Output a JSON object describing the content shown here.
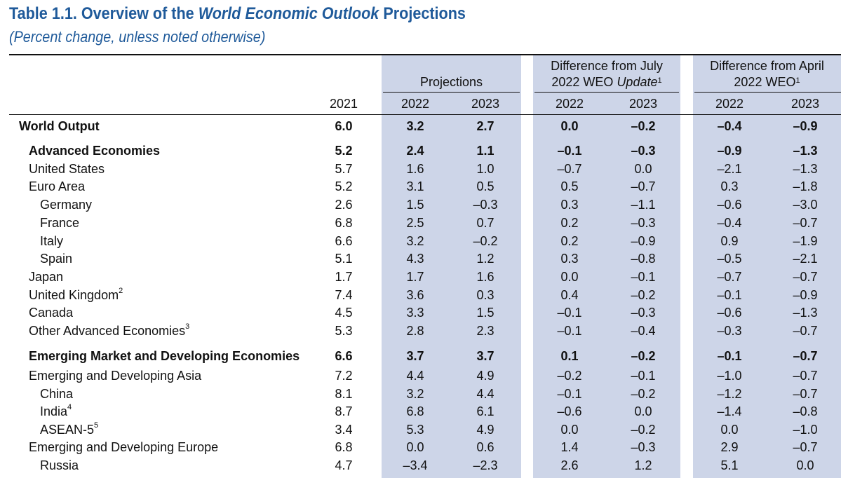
{
  "title": {
    "prefix": "Table 1.1. Overview of the ",
    "italic": "World Economic Outlook",
    "suffix": " Projections"
  },
  "subtitle": "(Percent change, unless noted otherwise)",
  "header": {
    "projections": "Projections",
    "july_line1": "Difference from July",
    "july_line2_prefix": "2022 WEO ",
    "july_line2_italic": "Update",
    "july_sup": "1",
    "april_line1": "Difference from April",
    "april_line2": "2022 WEO",
    "april_sup": "1",
    "years": [
      "2021",
      "2022",
      "2023",
      "2022",
      "2023",
      "2022",
      "2023"
    ]
  },
  "rows": [
    {
      "label": "World Output",
      "sup": "",
      "bold": true,
      "indent": 0,
      "values": [
        "6.0",
        "3.2",
        "2.7",
        "0.0",
        "–0.2",
        "–0.4",
        "–0.9"
      ]
    },
    {
      "label": "Advanced Economies",
      "sup": "",
      "bold": true,
      "indent": 1,
      "values": [
        "5.2",
        "2.4",
        "1.1",
        "–0.1",
        "–0.3",
        "–0.9",
        "–1.3"
      ]
    },
    {
      "label": "United States",
      "sup": "",
      "bold": false,
      "indent": 1,
      "values": [
        "5.7",
        "1.6",
        "1.0",
        "–0.7",
        "0.0",
        "–2.1",
        "–1.3"
      ]
    },
    {
      "label": "Euro Area",
      "sup": "",
      "bold": false,
      "indent": 1,
      "values": [
        "5.2",
        "3.1",
        "0.5",
        "0.5",
        "–0.7",
        "0.3",
        "–1.8"
      ]
    },
    {
      "label": "Germany",
      "sup": "",
      "bold": false,
      "indent": 2,
      "values": [
        "2.6",
        "1.5",
        "–0.3",
        "0.3",
        "–1.1",
        "–0.6",
        "–3.0"
      ]
    },
    {
      "label": "France",
      "sup": "",
      "bold": false,
      "indent": 2,
      "values": [
        "6.8",
        "2.5",
        "0.7",
        "0.2",
        "–0.3",
        "–0.4",
        "–0.7"
      ]
    },
    {
      "label": "Italy",
      "sup": "",
      "bold": false,
      "indent": 2,
      "values": [
        "6.6",
        "3.2",
        "–0.2",
        "0.2",
        "–0.9",
        "0.9",
        "–1.9"
      ]
    },
    {
      "label": "Spain",
      "sup": "",
      "bold": false,
      "indent": 2,
      "values": [
        "5.1",
        "4.3",
        "1.2",
        "0.3",
        "–0.8",
        "–0.5",
        "–2.1"
      ]
    },
    {
      "label": "Japan",
      "sup": "",
      "bold": false,
      "indent": 1,
      "values": [
        "1.7",
        "1.7",
        "1.6",
        "0.0",
        "–0.1",
        "–0.7",
        "–0.7"
      ]
    },
    {
      "label": "United Kingdom",
      "sup": "2",
      "bold": false,
      "indent": 1,
      "values": [
        "7.4",
        "3.6",
        "0.3",
        "0.4",
        "–0.2",
        "–0.1",
        "–0.9"
      ]
    },
    {
      "label": "Canada",
      "sup": "",
      "bold": false,
      "indent": 1,
      "values": [
        "4.5",
        "3.3",
        "1.5",
        "–0.1",
        "–0.3",
        "–0.6",
        "–1.3"
      ]
    },
    {
      "label": "Other Advanced Economies",
      "sup": "3",
      "bold": false,
      "indent": 1,
      "values": [
        "5.3",
        "2.8",
        "2.3",
        "–0.1",
        "–0.4",
        "–0.3",
        "–0.7"
      ]
    },
    {
      "label": "Emerging Market and Developing Economies",
      "sup": "",
      "bold": true,
      "indent": 1,
      "values": [
        "6.6",
        "3.7",
        "3.7",
        "0.1",
        "–0.2",
        "–0.1",
        "–0.7"
      ]
    },
    {
      "label": "Emerging and Developing Asia",
      "sup": "",
      "bold": false,
      "indent": 1,
      "values": [
        "7.2",
        "4.4",
        "4.9",
        "–0.2",
        "–0.1",
        "–1.0",
        "–0.7"
      ]
    },
    {
      "label": "China",
      "sup": "",
      "bold": false,
      "indent": 2,
      "values": [
        "8.1",
        "3.2",
        "4.4",
        "–0.1",
        "–0.2",
        "–1.2",
        "–0.7"
      ]
    },
    {
      "label": "India",
      "sup": "4",
      "bold": false,
      "indent": 2,
      "values": [
        "8.7",
        "6.8",
        "6.1",
        "–0.6",
        "0.0",
        "–1.4",
        "–0.8"
      ]
    },
    {
      "label": "ASEAN-5",
      "sup": "5",
      "bold": false,
      "indent": 2,
      "values": [
        "3.4",
        "5.3",
        "4.9",
        "0.0",
        "–0.2",
        "0.0",
        "–1.0"
      ]
    },
    {
      "label": "Emerging and Developing Europe",
      "sup": "",
      "bold": false,
      "indent": 1,
      "values": [
        "6.8",
        "0.0",
        "0.6",
        "1.4",
        "–0.3",
        "2.9",
        "–0.7"
      ]
    },
    {
      "label": "Russia",
      "sup": "",
      "bold": false,
      "indent": 2,
      "values": [
        "4.7",
        "–3.4",
        "–2.3",
        "2.6",
        "1.2",
        "5.1",
        "0.0"
      ]
    }
  ]
}
